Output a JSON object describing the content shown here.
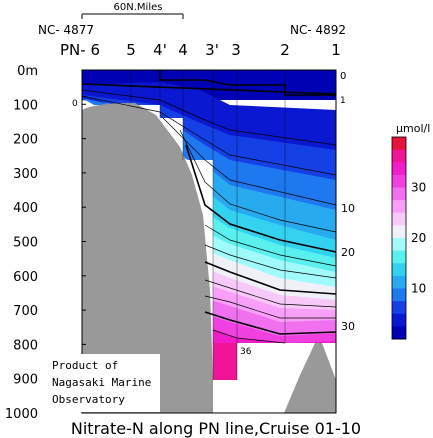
{
  "chart_data": {
    "type": "contour",
    "title": "Nitrate-N along PN line,Cruise 01-10",
    "scale_bar_label": "60N.Miles",
    "station_ids": {
      "left": "NC- 4877",
      "right": "NC- 4892"
    },
    "stations": [
      "PN- 6",
      "5",
      "4'",
      "4",
      "3'",
      "3",
      "2",
      "1"
    ],
    "y_axis": {
      "ticks": [
        "0m",
        "100",
        "200",
        "300",
        "400",
        "500",
        "600",
        "700",
        "800",
        "900",
        "1000"
      ],
      "range": [
        0,
        1000
      ],
      "inverted": true
    },
    "contour_labels": [
      "0",
      "0",
      "1",
      "10",
      "20",
      "30",
      "36"
    ],
    "colorbar": {
      "unit": "μmol/l",
      "ticks": [
        "30",
        "20",
        "10"
      ],
      "range": [
        0,
        40
      ],
      "colors": [
        "#0000b4",
        "#0a18d2",
        "#1440e6",
        "#1e78f0",
        "#28aaf0",
        "#32d2f0",
        "#5af0f0",
        "#a0fafa",
        "#f0f0f8",
        "#f8c8f8",
        "#f8a0f8",
        "#f070f0",
        "#f040e0",
        "#f01ec8",
        "#f01496",
        "#e6143c"
      ]
    },
    "credit": [
      "Product of",
      "Nagasaki Marine",
      "Observatory"
    ]
  }
}
